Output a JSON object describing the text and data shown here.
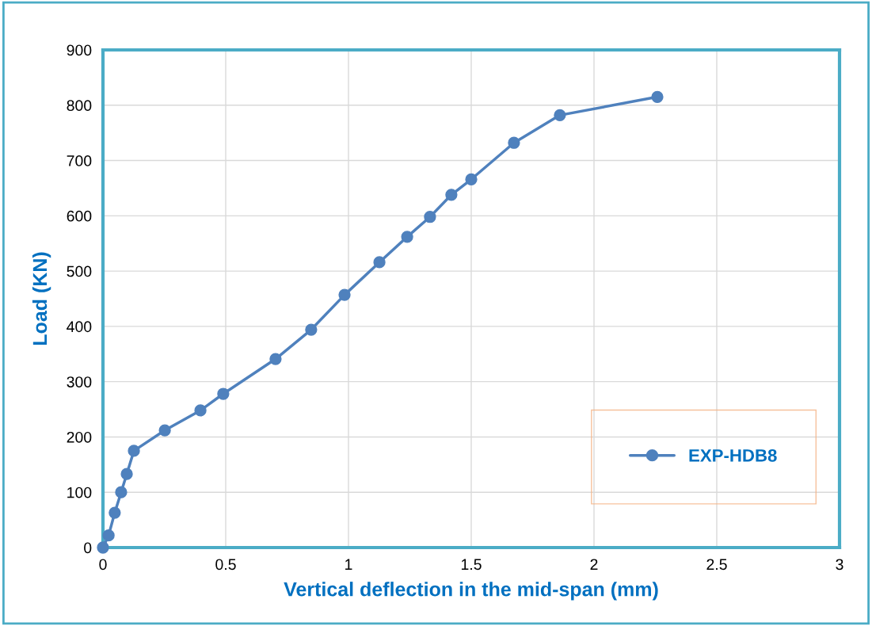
{
  "chart_data": {
    "type": "line",
    "xlabel": "Vertical deflection in the mid-span (mm)",
    "ylabel": "Load (KN)",
    "x": [
      0,
      0.023,
      0.048,
      0.074,
      0.097,
      0.126,
      0.252,
      0.397,
      0.49,
      0.703,
      0.848,
      0.984,
      1.126,
      1.239,
      1.332,
      1.419,
      1.5,
      1.674,
      1.861,
      2.258
    ],
    "series": [
      {
        "name": "EXP-HDB8",
        "color": "#4f81bd",
        "values": [
          0,
          22,
          63,
          100,
          133,
          175,
          212,
          248,
          278,
          341,
          394,
          457,
          516,
          562,
          598,
          638,
          666,
          732,
          782,
          815
        ]
      }
    ],
    "xlim": [
      0,
      3
    ],
    "xticks": [
      0,
      0.5,
      1,
      1.5,
      2,
      2.5,
      3
    ],
    "ylim": [
      0,
      900
    ],
    "yticks": [
      0,
      100,
      200,
      300,
      400,
      500,
      600,
      700,
      800,
      900
    ],
    "grid": true,
    "legend": "lower right",
    "marker": "circle",
    "line_style": "solid"
  }
}
